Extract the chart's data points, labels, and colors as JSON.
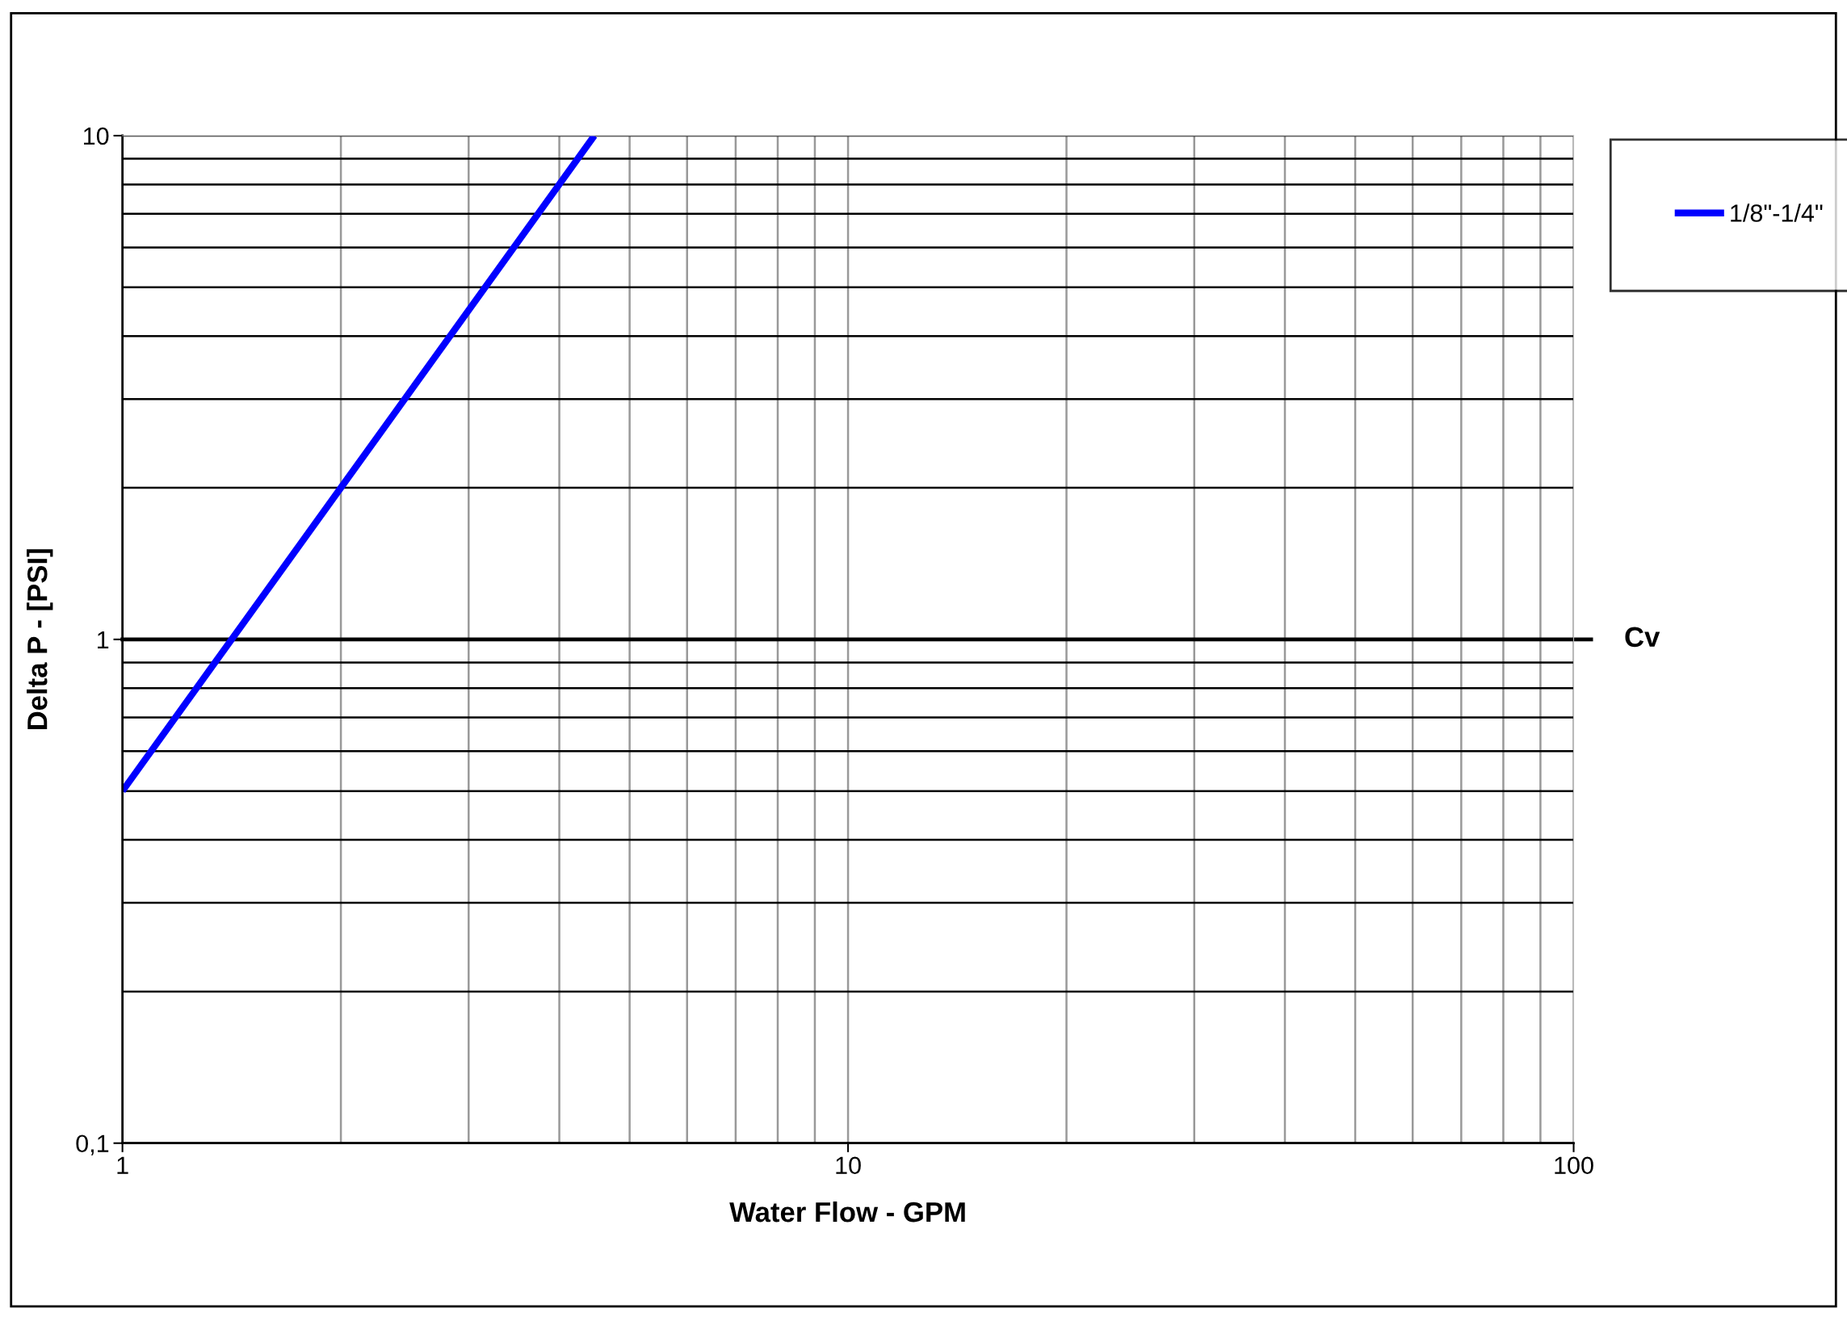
{
  "chart_data": {
    "type": "line",
    "xlabel": "Water Flow - GPM",
    "ylabel": "Delta P - [PSI]",
    "log": "xy",
    "xlim": [
      1,
      100
    ],
    "ylim": [
      0.1,
      10
    ],
    "xticks": [
      1,
      10,
      100
    ],
    "yticks": [
      {
        "value": 0.1,
        "label": "0,1"
      },
      1,
      10
    ],
    "grid": true,
    "legend": "top right",
    "marker": "none",
    "line_style": "solid",
    "ref_lines": [
      {
        "axis": "y",
        "value": 1,
        "label": "Cv",
        "color": "#000000"
      }
    ],
    "series": [
      {
        "name": "1/8\"-1/4\"",
        "color": "#0000ff",
        "x": [
          1,
          2,
          4.47
        ],
        "values": [
          0.5,
          2,
          10
        ]
      }
    ]
  }
}
